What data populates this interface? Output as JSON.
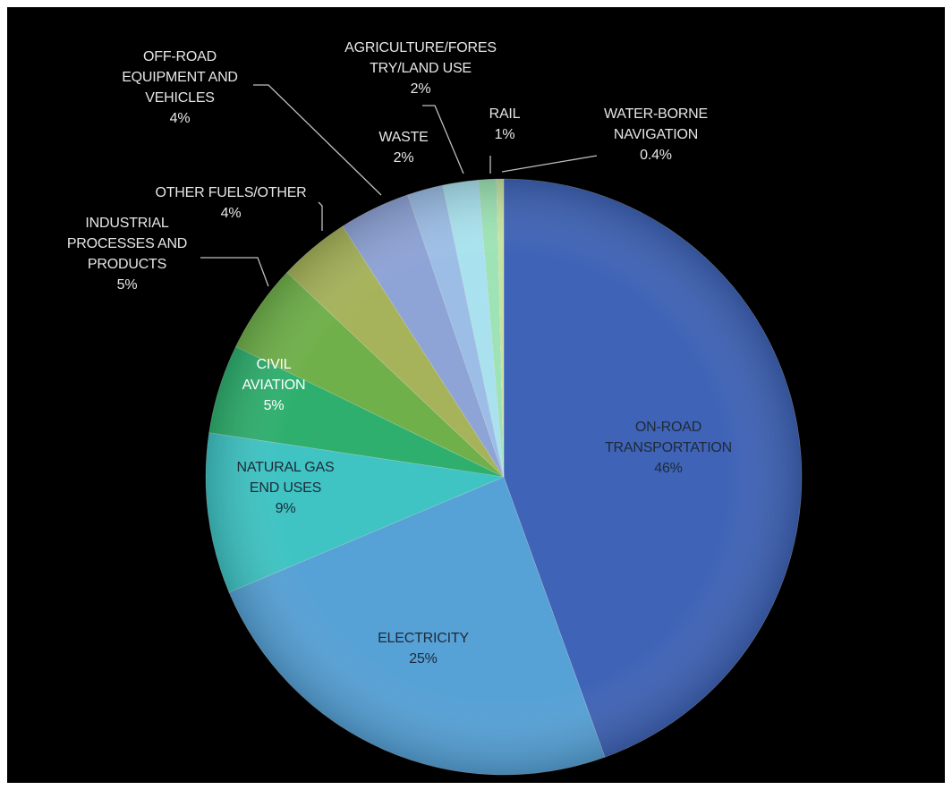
{
  "chart_data": {
    "type": "pie",
    "title": "",
    "start_angle_deg": 0,
    "direction": "clockwise",
    "slices": [
      {
        "name": "ON-ROAD TRANSPORTATION",
        "label_lines": [
          "ON-ROAD",
          "TRANSPORTATION"
        ],
        "value": 46,
        "value_label": "46%",
        "color": "#3f63b6",
        "label_position": "inside"
      },
      {
        "name": "ELECTRICITY",
        "label_lines": [
          "ELECTRICITY"
        ],
        "value": 25,
        "value_label": "25%",
        "color": "#56a1d6",
        "label_position": "inside"
      },
      {
        "name": "NATURAL GAS END USES",
        "label_lines": [
          "NATURAL GAS",
          "END USES"
        ],
        "value": 9,
        "value_label": "9%",
        "color": "#3fc3c3",
        "label_position": "inside"
      },
      {
        "name": "CIVIL AVIATION",
        "label_lines": [
          "CIVIL",
          "AVIATION"
        ],
        "value": 5,
        "value_label": "5%",
        "color": "#2faf6e",
        "label_position": "inside"
      },
      {
        "name": "INDUSTRIAL PROCESSES AND PRODUCTS",
        "label_lines": [
          "INDUSTRIAL",
          "PROCESSES AND",
          "PRODUCTS"
        ],
        "value": 5,
        "value_label": "5%",
        "color": "#6fb04a",
        "label_position": "outside"
      },
      {
        "name": "OTHER FUELS/OTHER",
        "label_lines": [
          "OTHER FUELS/OTHER"
        ],
        "value": 4,
        "value_label": "4%",
        "color": "#a6b35a",
        "label_position": "outside"
      },
      {
        "name": "OFF-ROAD EQUIPMENT AND VEHICLES",
        "label_lines": [
          "OFF-ROAD",
          "EQUIPMENT AND",
          "VEHICLES"
        ],
        "value": 4,
        "value_label": "4%",
        "color": "#8ea3d6",
        "label_position": "outside"
      },
      {
        "name": "WASTE",
        "label_lines": [
          "WASTE"
        ],
        "value": 2,
        "value_label": "2%",
        "color": "#9cbee6",
        "label_position": "outside"
      },
      {
        "name": "AGRICULTURE/FORESTRY/LAND USE",
        "label_lines": [
          "AGRICULTURE/FORES",
          "TRY/LAND USE"
        ],
        "value": 2,
        "value_label": "2%",
        "color": "#a9e2ee",
        "label_position": "outside"
      },
      {
        "name": "RAIL",
        "label_lines": [
          "RAIL"
        ],
        "value": 1,
        "value_label": "1%",
        "color": "#9ee3b5",
        "label_position": "outside"
      },
      {
        "name": "WATER-BORNE NAVIGATION",
        "label_lines": [
          "WATER-BORNE",
          "NAVIGATION"
        ],
        "value": 0.4,
        "value_label": "0.4%",
        "color": "#c7e3a0",
        "label_position": "outside"
      }
    ]
  }
}
